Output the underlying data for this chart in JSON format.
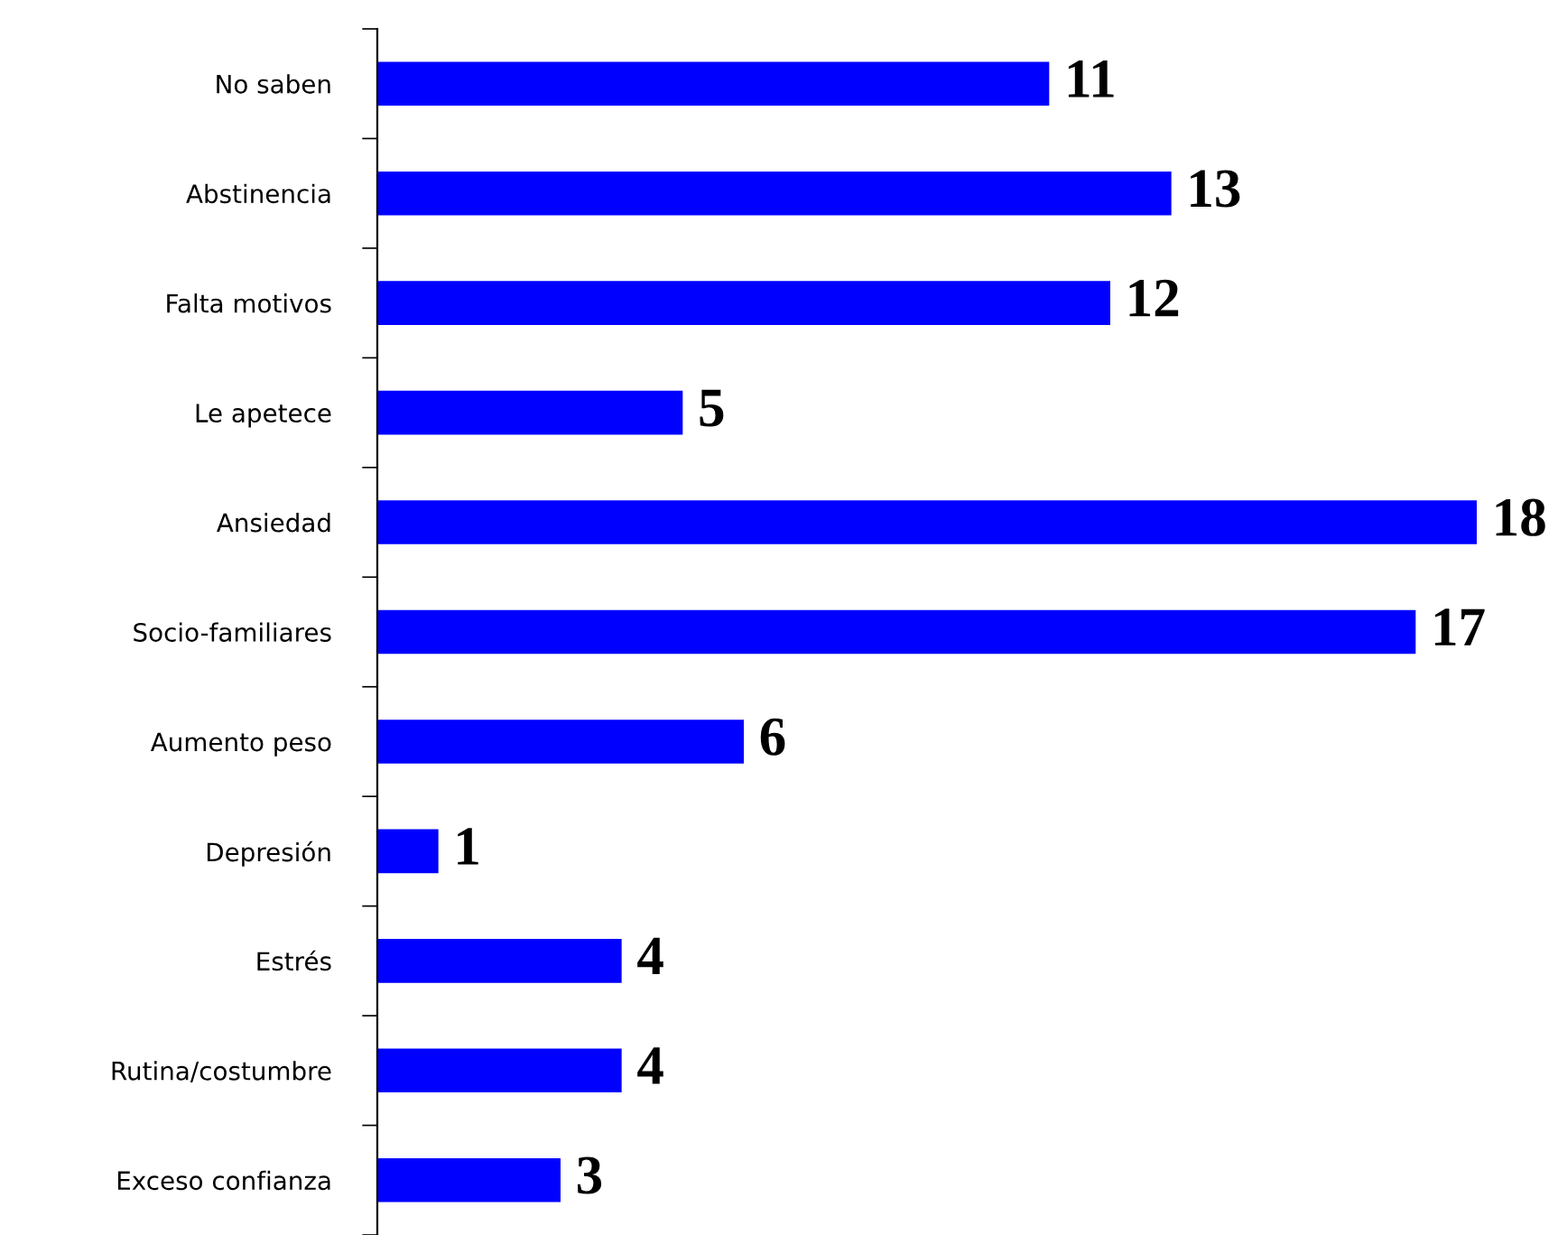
{
  "chart_data": {
    "type": "bar",
    "orientation": "horizontal",
    "categories": [
      "No saben",
      "Abstinencia",
      "Falta motivos",
      "Le apetece",
      "Ansiedad",
      "Socio-familiares",
      "Aumento peso",
      "Depresión",
      "Estrés",
      "Rutina/costumbre",
      "Exceso confianza"
    ],
    "values": [
      11,
      13,
      12,
      5,
      18,
      17,
      6,
      1,
      4,
      4,
      3
    ],
    "color": "#0000ff",
    "data_labels": true,
    "grid": false,
    "legend": false
  }
}
